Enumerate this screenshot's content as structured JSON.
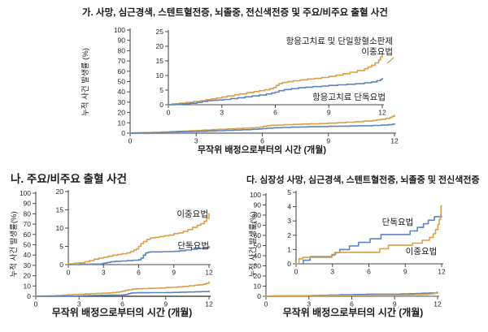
{
  "colors": {
    "dual": "#D8A046",
    "mono": "#5B84C0",
    "axis_main": "#9b9b9b",
    "axis_dark": "#4a4a4a",
    "tick_text": "#262626"
  },
  "chart_data": [
    {
      "id": "a",
      "type": "line",
      "title": "가. 사망, 심근경색, 스텐트혈전증, 뇌졸중, 전신색전증 및 주요/비주요 출혈 사건",
      "xlabel": "무작위 배정으로부터의 시간 (개월)",
      "ylabel": "누적 사건 발생률 (%)",
      "main_axis": {
        "xlim": [
          0,
          12
        ],
        "xticks": [
          0,
          3,
          6,
          9,
          12
        ],
        "ylim": [
          0,
          100
        ],
        "yticks": [
          0,
          10,
          20,
          30,
          40,
          50,
          60,
          70,
          80,
          90,
          100
        ]
      },
      "inset_axis": {
        "xlim": [
          0,
          12
        ],
        "xticks": [
          0,
          3,
          6,
          9,
          12
        ],
        "ylim": [
          0,
          25
        ],
        "yticks": [
          0,
          5,
          10,
          15,
          20,
          25
        ]
      },
      "labels": {
        "dual_line1": "항응고치료 및 단일항혈소판제",
        "dual_line2": "이중요법",
        "mono": "항응고치료 단독요법"
      },
      "series": [
        {
          "key": "dual",
          "name": "항응고치료 및 단일항혈소판제 이중요법",
          "color_key": "dual",
          "points": [
            [
              0,
              0
            ],
            [
              0.2,
              0.3
            ],
            [
              0.6,
              0.5
            ],
            [
              1,
              0.8
            ],
            [
              1.4,
              1.1
            ],
            [
              1.8,
              1.4
            ],
            [
              2.1,
              1.7
            ],
            [
              2.4,
              2
            ],
            [
              2.7,
              2.3
            ],
            [
              3,
              2.6
            ],
            [
              3.3,
              3
            ],
            [
              3.7,
              3.4
            ],
            [
              4,
              3.7
            ],
            [
              4.4,
              4.1
            ],
            [
              4.8,
              4.5
            ],
            [
              5.1,
              4.8
            ],
            [
              5.4,
              5.1
            ],
            [
              5.7,
              5.5
            ],
            [
              5.9,
              5.9
            ],
            [
              6.05,
              6.6
            ],
            [
              6.2,
              7.2
            ],
            [
              6.4,
              7.6
            ],
            [
              6.7,
              7.9
            ],
            [
              7,
              8.2
            ],
            [
              7.4,
              8.5
            ],
            [
              7.8,
              8.8
            ],
            [
              8.2,
              9
            ],
            [
              8.6,
              9.3
            ],
            [
              9,
              9.7
            ],
            [
              9.4,
              10.1
            ],
            [
              9.8,
              10.6
            ],
            [
              10.2,
              11.1
            ],
            [
              10.6,
              11.7
            ],
            [
              11,
              12.3
            ],
            [
              11.2,
              12.9
            ],
            [
              11.4,
              13.5
            ],
            [
              11.6,
              14.3
            ],
            [
              11.8,
              15.3
            ],
            [
              11.9,
              16.3
            ],
            [
              12,
              17.4
            ]
          ]
        },
        {
          "key": "mono",
          "name": "항응고치료 단독요법",
          "color_key": "mono",
          "points": [
            [
              0,
              0
            ],
            [
              0.4,
              0.2
            ],
            [
              0.8,
              0.3
            ],
            [
              1.2,
              0.5
            ],
            [
              1.6,
              0.8
            ],
            [
              1.9,
              1.1
            ],
            [
              2.2,
              1.4
            ],
            [
              2.5,
              1.5
            ],
            [
              2.8,
              1.6
            ],
            [
              3.1,
              1.8
            ],
            [
              3.5,
              2.1
            ],
            [
              3.9,
              2.4
            ],
            [
              4.3,
              2.7
            ],
            [
              4.7,
              3
            ],
            [
              5.1,
              3.3
            ],
            [
              5.5,
              3.7
            ],
            [
              5.8,
              4
            ],
            [
              6,
              4.3
            ],
            [
              6.2,
              4.8
            ],
            [
              6.5,
              5.2
            ],
            [
              6.9,
              5.5
            ],
            [
              7.3,
              5.8
            ],
            [
              7.7,
              6
            ],
            [
              8.1,
              6.2
            ],
            [
              8.6,
              6.4
            ],
            [
              9,
              6.6
            ],
            [
              9.5,
              6.8
            ],
            [
              10,
              7
            ],
            [
              10.5,
              7.2
            ],
            [
              11,
              7.5
            ],
            [
              11.4,
              7.8
            ],
            [
              11.7,
              8.2
            ],
            [
              11.9,
              8.6
            ],
            [
              12,
              9
            ]
          ]
        }
      ]
    },
    {
      "id": "b",
      "type": "line",
      "title": "나. 주요/비주요 출혈 사건",
      "xlabel": "무작위 배정으로부터의 시간 (개월)",
      "ylabel": "누적 사건 발생률(%)",
      "main_axis": {
        "xlim": [
          0,
          12
        ],
        "xticks": [
          0,
          3,
          6,
          9,
          12
        ],
        "ylim": [
          0,
          100
        ],
        "yticks": [
          0,
          10,
          20,
          30,
          40,
          50,
          60,
          70,
          80,
          90,
          100
        ]
      },
      "inset_axis": {
        "xlim": [
          0,
          12
        ],
        "xticks": [
          0,
          3,
          6,
          9,
          12
        ],
        "ylim": [
          0,
          20
        ],
        "yticks": [
          0,
          5,
          10,
          15,
          20
        ]
      },
      "labels": {
        "dual": "이중요법",
        "mono": "단독요법"
      },
      "series": [
        {
          "key": "dual",
          "name": "이중요법",
          "color_key": "dual",
          "points": [
            [
              0,
              0.2
            ],
            [
              0.5,
              0.4
            ],
            [
              1,
              0.5
            ],
            [
              1.4,
              0.8
            ],
            [
              1.8,
              1.1
            ],
            [
              2.2,
              1.5
            ],
            [
              2.6,
              1.8
            ],
            [
              3,
              2
            ],
            [
              3.4,
              2.3
            ],
            [
              3.8,
              2.6
            ],
            [
              4.2,
              2.8
            ],
            [
              4.6,
              3
            ],
            [
              5,
              3.2
            ],
            [
              5.3,
              3.6
            ],
            [
              5.6,
              4
            ],
            [
              5.8,
              4.3
            ],
            [
              6,
              5
            ],
            [
              6.2,
              5.8
            ],
            [
              6.4,
              6.3
            ],
            [
              6.7,
              6.9
            ],
            [
              7,
              7.3
            ],
            [
              7.4,
              7.5
            ],
            [
              7.8,
              7.7
            ],
            [
              8.2,
              7.9
            ],
            [
              8.6,
              8.1
            ],
            [
              9,
              8.5
            ],
            [
              9.4,
              8.7
            ],
            [
              9.8,
              9.1
            ],
            [
              10.2,
              9.6
            ],
            [
              10.6,
              10.2
            ],
            [
              11,
              10.8
            ],
            [
              11.3,
              11.2
            ],
            [
              11.6,
              11.9
            ],
            [
              11.8,
              12.7
            ],
            [
              12,
              14
            ]
          ]
        },
        {
          "key": "mono",
          "name": "단독요법",
          "color_key": "mono",
          "points": [
            [
              0,
              0
            ],
            [
              1,
              0.1
            ],
            [
              2,
              0.15
            ],
            [
              2.8,
              0.25
            ],
            [
              3,
              0.4
            ],
            [
              3.3,
              0.6
            ],
            [
              3.6,
              0.8
            ],
            [
              4,
              0.9
            ],
            [
              4.5,
              1
            ],
            [
              5,
              1.1
            ],
            [
              5.5,
              1.2
            ],
            [
              6,
              1.3
            ],
            [
              6.2,
              1.8
            ],
            [
              6.4,
              2.6
            ],
            [
              6.6,
              3.2
            ],
            [
              6.8,
              3.4
            ],
            [
              7,
              3.5
            ],
            [
              8,
              3.55
            ],
            [
              9,
              3.65
            ],
            [
              9.5,
              3.8
            ],
            [
              10,
              4
            ],
            [
              10.5,
              4.2
            ],
            [
              11,
              4.4
            ],
            [
              11.5,
              4.6
            ],
            [
              12,
              5
            ]
          ]
        }
      ]
    },
    {
      "id": "c",
      "type": "line",
      "title": "다. 심장성 사망, 심근경색, 스텐트혈전증, 뇌졸중 및 전신색전증",
      "xlabel": "무작위 배정으로부터의 시간 (개월)",
      "ylabel": "누적 사건 발생률(%)",
      "main_axis": {
        "xlim": [
          0,
          12
        ],
        "xticks": [
          0,
          3,
          6,
          9,
          12
        ],
        "ylim": [
          0,
          100
        ],
        "yticks": [
          0,
          10,
          20,
          30,
          40,
          50,
          60,
          70,
          80,
          90,
          100
        ]
      },
      "inset_axis": {
        "xlim": [
          0,
          12
        ],
        "xticks": [
          0,
          3,
          6,
          9,
          12
        ],
        "ylim": [
          0,
          5
        ],
        "yticks": [
          0,
          1,
          2,
          3,
          4,
          5
        ]
      },
      "labels": {
        "dual": "이중요법",
        "mono": "단독요법"
      },
      "series": [
        {
          "key": "mono",
          "name": "단독요법",
          "color_key": "mono",
          "points": [
            [
              0,
              0
            ],
            [
              0.6,
              0
            ],
            [
              0.6,
              0.25
            ],
            [
              1.15,
              0.25
            ],
            [
              1.15,
              0.5
            ],
            [
              2.95,
              0.5
            ],
            [
              2.95,
              0.65
            ],
            [
              3.25,
              0.65
            ],
            [
              3.25,
              0.78
            ],
            [
              3.6,
              0.78
            ],
            [
              3.6,
              1
            ],
            [
              4.4,
              1
            ],
            [
              4.4,
              1.25
            ],
            [
              5.15,
              1.25
            ],
            [
              5.15,
              1.5
            ],
            [
              6.1,
              1.5
            ],
            [
              6.1,
              1.75
            ],
            [
              7,
              1.75
            ],
            [
              7,
              2.05
            ],
            [
              9.4,
              2.05
            ],
            [
              9.4,
              2.3
            ],
            [
              10,
              2.3
            ],
            [
              10,
              2.55
            ],
            [
              10.5,
              2.55
            ],
            [
              10.5,
              2.8
            ],
            [
              10.9,
              2.8
            ],
            [
              10.9,
              3.05
            ],
            [
              11.4,
              3.05
            ],
            [
              11.4,
              3.3
            ],
            [
              12,
              3.3
            ]
          ]
        },
        {
          "key": "dual",
          "name": "이중요법",
          "color_key": "dual",
          "points": [
            [
              0,
              0
            ],
            [
              0.25,
              0
            ],
            [
              0.25,
              0.35
            ],
            [
              0.55,
              0.35
            ],
            [
              0.55,
              0.45
            ],
            [
              2.95,
              0.45
            ],
            [
              2.95,
              0.6
            ],
            [
              3.2,
              0.6
            ],
            [
              3.2,
              0.8
            ],
            [
              6.9,
              0.8
            ],
            [
              6.9,
              1.05
            ],
            [
              7.6,
              1.05
            ],
            [
              7.6,
              1.3
            ],
            [
              9.6,
              1.3
            ],
            [
              9.6,
              1.45
            ],
            [
              10.4,
              1.45
            ],
            [
              10.4,
              1.65
            ],
            [
              11,
              1.65
            ],
            [
              11,
              1.85
            ],
            [
              11.3,
              1.85
            ],
            [
              11.3,
              2.1
            ],
            [
              11.5,
              2.1
            ],
            [
              11.5,
              2.4
            ],
            [
              11.7,
              2.4
            ],
            [
              11.7,
              2.75
            ],
            [
              11.8,
              2.75
            ],
            [
              11.8,
              3.1
            ],
            [
              11.9,
              3.1
            ],
            [
              11.9,
              3.4
            ],
            [
              11.95,
              3.4
            ],
            [
              11.95,
              4.05
            ],
            [
              12,
              4.05
            ]
          ]
        }
      ]
    }
  ]
}
